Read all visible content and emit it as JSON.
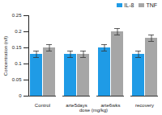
{
  "chart_data": {
    "type": "bar",
    "categories": [
      "Control",
      "arte5days",
      "arte6wks",
      "recovery"
    ],
    "series": [
      {
        "name": "IL-8",
        "color": "#1f9be6",
        "values": [
          0.13,
          0.13,
          0.15,
          0.13
        ],
        "errors": [
          0.01,
          0.01,
          0.01,
          0.01
        ]
      },
      {
        "name": "TNF",
        "color": "#a6a6a6",
        "values": [
          0.15,
          0.13,
          0.2,
          0.18
        ],
        "errors": [
          0.01,
          0.01,
          0.01,
          0.01
        ]
      }
    ],
    "x_label": "dose (mg/kg)",
    "y_label": "Concentration (n/l)",
    "ylim": [
      0,
      0.25
    ],
    "yticks": [
      0,
      0.05,
      0.1,
      0.15,
      0.2,
      0.25
    ],
    "legend": "top-right",
    "grid": false
  }
}
